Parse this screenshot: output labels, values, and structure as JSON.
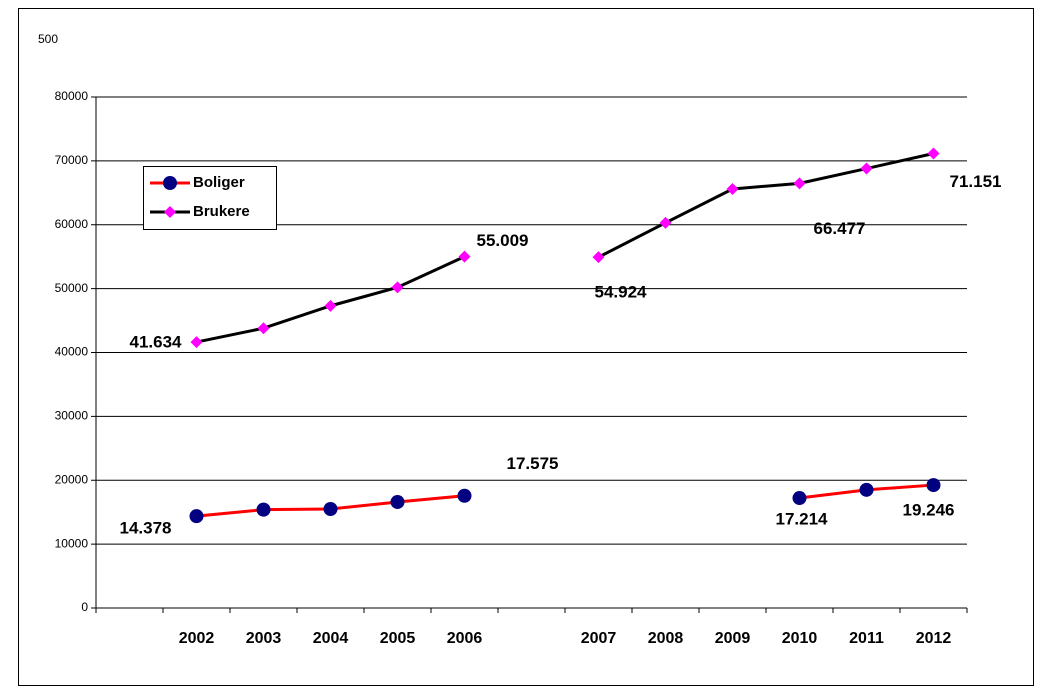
{
  "chart_data": {
    "type": "line",
    "annotation": "500",
    "categories": [
      null,
      "2002",
      "2003",
      "2004",
      "2005",
      "2006",
      null,
      "2007",
      "2008",
      "2009",
      "2010",
      "2011",
      "2012"
    ],
    "series": [
      {
        "name": "Boliger",
        "color": "#ff0000",
        "marker_color": "#000080",
        "marker": "circle",
        "values": [
          null,
          14378,
          15400,
          15500,
          16600,
          17575,
          null,
          null,
          null,
          null,
          17214,
          18500,
          19246
        ],
        "value_labels": [
          null,
          "14.378",
          null,
          null,
          null,
          "17.575",
          null,
          null,
          null,
          null,
          "17.214",
          null,
          "19.246"
        ]
      },
      {
        "name": "Brukere",
        "color": "#000000",
        "marker_color": "#ff00ff",
        "marker": "diamond",
        "values": [
          null,
          41634,
          43800,
          47300,
          50200,
          55009,
          null,
          54924,
          60300,
          65600,
          66477,
          68800,
          71151
        ],
        "value_labels": [
          null,
          "41.634",
          null,
          null,
          null,
          "55.009",
          null,
          "54.924",
          null,
          null,
          "66.477",
          null,
          "71.151"
        ]
      }
    ],
    "ylim": [
      0,
      80000
    ],
    "yticks": [
      0,
      10000,
      20000,
      30000,
      40000,
      50000,
      60000,
      70000,
      80000
    ],
    "grid": true,
    "legend": "upper left"
  }
}
